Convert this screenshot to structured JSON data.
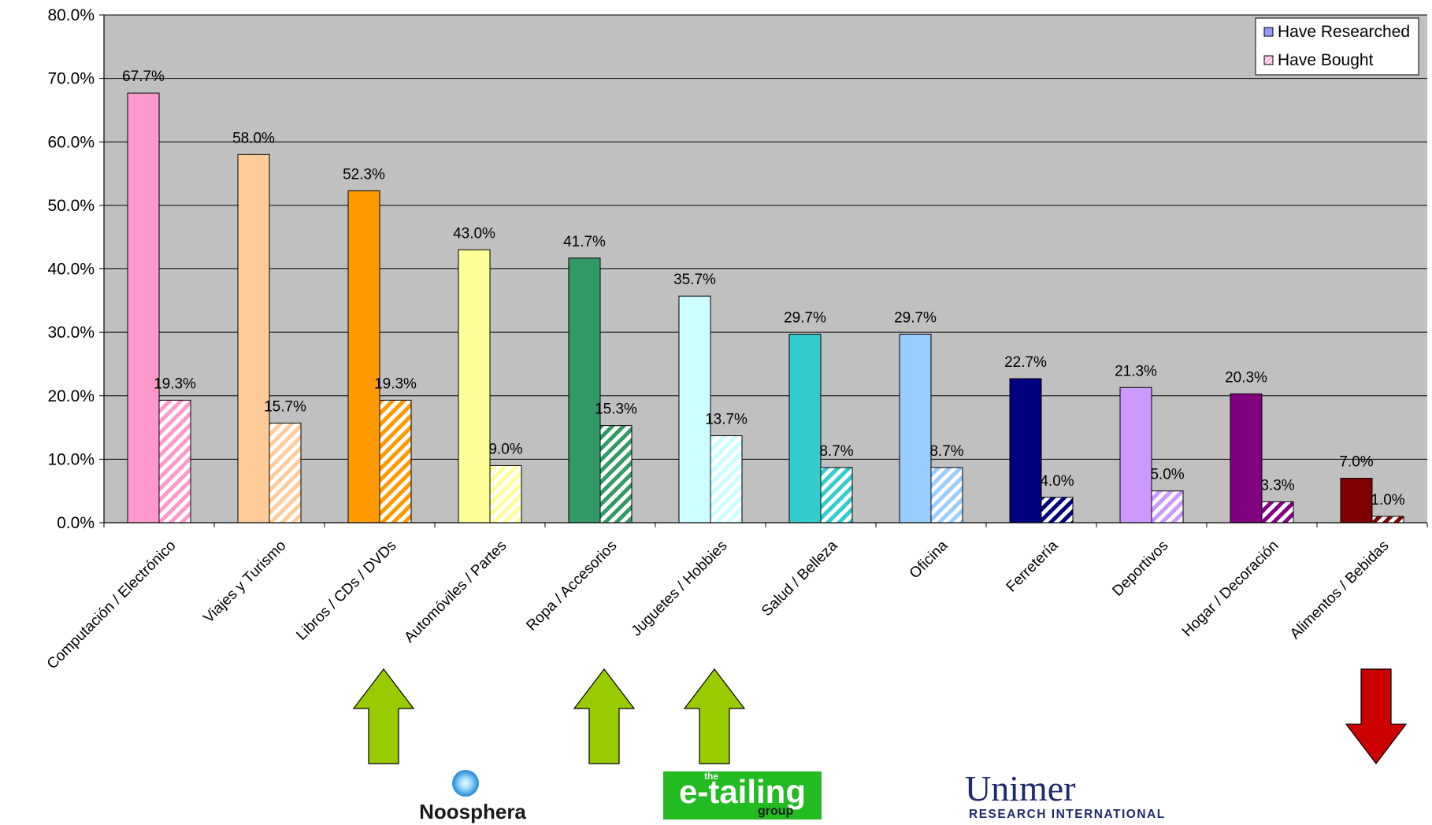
{
  "chart_data": {
    "type": "bar",
    "categories": [
      "Computación / Electrónico",
      "Viajes y Turismo",
      "Libros / CDs / DVDs",
      "Automóviles / Partes",
      "Ropa / Accesorios",
      "Juguetes / Hobbies",
      "Salud / Belleza",
      "Oficina",
      "Ferretería",
      "Deportivos",
      "Hogar / Decoración",
      "Alimentos / Bebidas"
    ],
    "series": [
      {
        "name": "Have Researched",
        "values": [
          67.7,
          58.0,
          52.3,
          43.0,
          41.7,
          35.7,
          29.7,
          29.7,
          22.7,
          21.3,
          20.3,
          7.0
        ],
        "labels": [
          "67.7%",
          "58.0%",
          "52.3%",
          "43.0%",
          "41.7%",
          "35.7%",
          "29.7%",
          "29.7%",
          "22.7%",
          "21.3%",
          "20.3%",
          "7.0%"
        ]
      },
      {
        "name": "Have Bought",
        "values": [
          19.3,
          15.7,
          19.3,
          9.0,
          15.3,
          13.7,
          8.7,
          8.7,
          4.0,
          5.0,
          3.3,
          1.0
        ],
        "labels": [
          "19.3%",
          "15.7%",
          "19.3%",
          "9.0%",
          "15.3%",
          "13.7%",
          "8.7%",
          "8.7%",
          "4.0%",
          "5.0%",
          "3.3%",
          "1.0%"
        ]
      }
    ],
    "category_colors": [
      "#ff99cc",
      "#ffcc99",
      "#ff9900",
      "#ffff99",
      "#339966",
      "#ccffff",
      "#33cccc",
      "#99ccff",
      "#000080",
      "#cc99ff",
      "#800080",
      "#800000"
    ],
    "legend_colors": [
      "#9999ff",
      "#ff99cc"
    ],
    "plot_background": "#c0c0c0",
    "ylim": [
      0,
      80
    ],
    "yticks": [
      "0.0%",
      "10.0%",
      "20.0%",
      "30.0%",
      "40.0%",
      "50.0%",
      "60.0%",
      "70.0%",
      "80.0%"
    ],
    "grid": true,
    "legend_position": "top-right",
    "xlabel": "",
    "ylabel": ""
  },
  "annotations": {
    "arrows": [
      {
        "category": "Libros / CDs / DVDs",
        "direction": "up",
        "color": "#99cc00"
      },
      {
        "category": "Ropa / Accesorios",
        "direction": "up",
        "color": "#99cc00"
      },
      {
        "category": "Juguetes / Hobbies",
        "direction": "up",
        "color": "#99cc00"
      },
      {
        "category": "Alimentos / Bebidas",
        "direction": "down",
        "color": "#cc0000"
      }
    ]
  },
  "logos": {
    "noosphera": {
      "text": "Noosphera",
      "icon": "sphere-icon",
      "color": "#3399dd"
    },
    "etailing": {
      "top": "the",
      "main": "e-tailing",
      "bottom": "group",
      "background": "#22bb22"
    },
    "unimer": {
      "main": "Unimer",
      "sub": "RESEARCH INTERNATIONAL",
      "color": "#1f2a6b"
    }
  }
}
